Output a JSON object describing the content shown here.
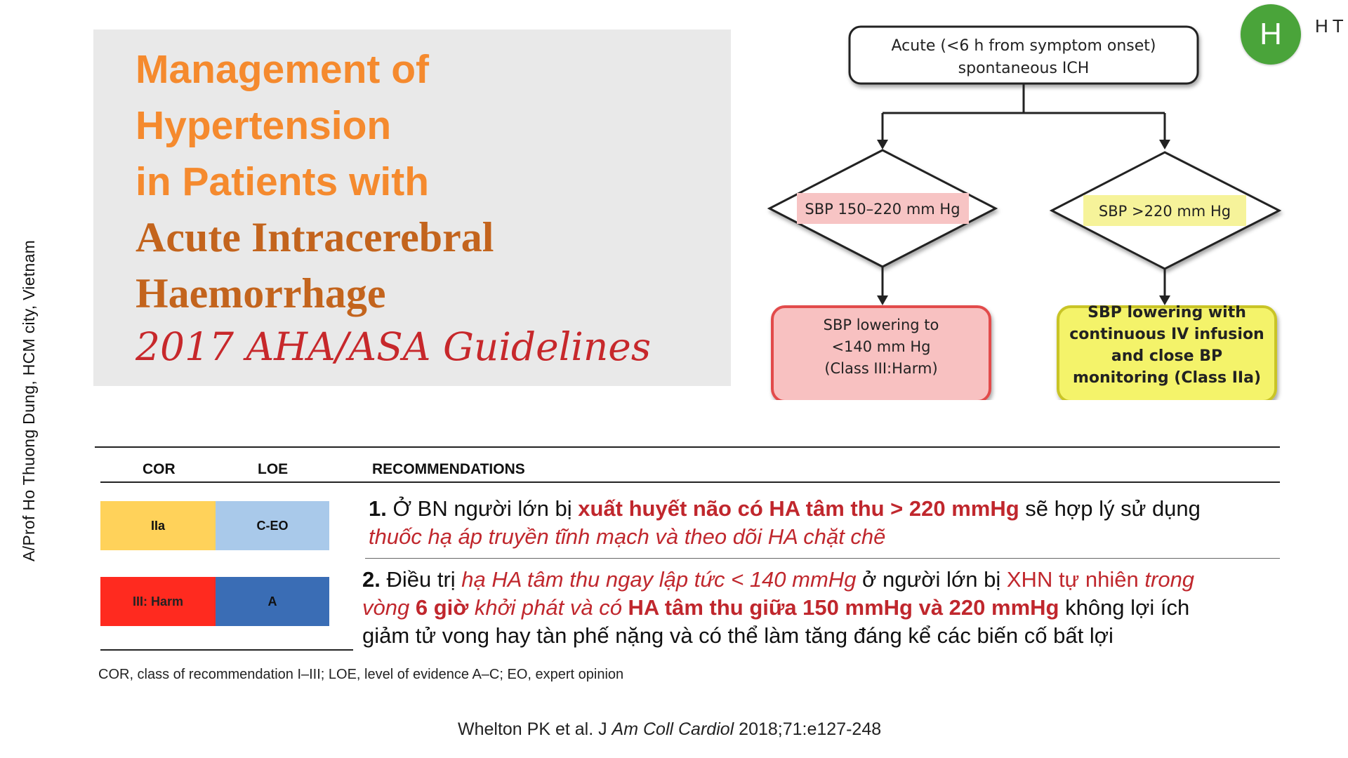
{
  "author_vertical": "A/Prof Ho Thuong Dung, HCM city, Vietnam",
  "title": {
    "line1": "Management of",
    "line2": "Hypertension",
    "line3": "in Patients with",
    "line4": "Acute Intracerebral",
    "line5": "Haemorrhage",
    "line6": "2017 AHA/ASA Guidelines"
  },
  "logo": {
    "letter": "H",
    "text": "HT"
  },
  "flowchart": {
    "top_box": {
      "line1": "Acute (<6 h from symptom onset)",
      "line2": "spontaneous ICH"
    },
    "left_diamond": "SBP 150–220 mm Hg",
    "right_diamond": "SBP >220 mm Hg",
    "left_box": {
      "line1": "SBP lowering to",
      "line2": "<140 mm Hg",
      "line3": "(Class III:Harm)"
    },
    "right_box": {
      "line1": "SBP lowering with",
      "line2": "continuous IV infusion",
      "line3": "and close BP",
      "line4": "monitoring (Class IIa)"
    },
    "colors": {
      "left": "#f4b6b6",
      "left_border": "#e24b4b",
      "right": "#f4f36a",
      "right_border": "#c9c427"
    }
  },
  "table": {
    "headers": {
      "cor": "COR",
      "loe": "LOE",
      "rec": "RECOMMENDATIONS"
    },
    "rows": [
      {
        "cor": "IIa",
        "loe": "C-EO",
        "cor_color": "#ffd25a",
        "loe_color": "#a9c9ea",
        "num": "1.",
        "parts": [
          "Ở BN người lớn bị ",
          "xuất huyết não có HA tâm thu > 220  mmHg",
          " sẽ hợp lý sử dụng",
          "thuốc hạ áp truyền tĩnh mạch và theo dõi HA chặt chẽ"
        ]
      },
      {
        "cor": "III: Harm",
        "loe": "A",
        "cor_color": "#ff2a1f",
        "loe_color": "#3a6db5",
        "num": "2.",
        "parts": [
          "Điều trị ",
          "hạ HA tâm thu  ngay lập tức < 140 mmHg",
          " ở người lớn bị ",
          "XHN tự nhiên ",
          "trong",
          "vòng ",
          "6 giờ",
          " khởi phát và có ",
          "HA tâm thu giữa 150  mmHg và  220  mmHg",
          " không lợi ích",
          "giảm tử vong hay tàn phế nặng và có thể làm tăng đáng kể các biến cố bất lợi"
        ]
      }
    ]
  },
  "footnote": "COR, class of recommendation I–III; LOE, level of evidence A–C; EO, expert opinion",
  "citation": {
    "authors": "Whelton PK  et al. J ",
    "journal": "Am Coll Cardiol",
    "ref": "  2018;71:e127-248"
  }
}
